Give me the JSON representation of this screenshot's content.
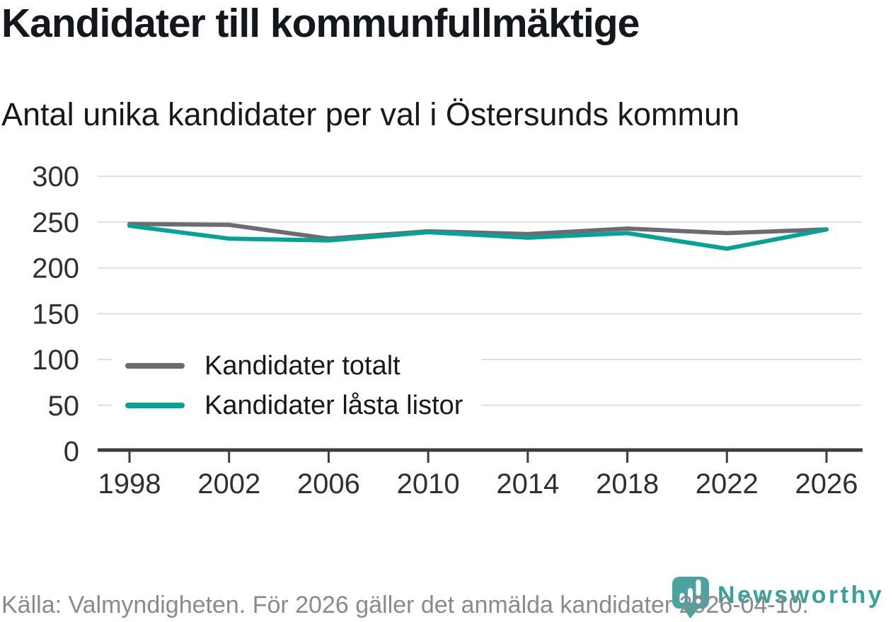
{
  "title": "Kandidater till kommunfullmäktige",
  "subtitle": "Antal unika kandidater per val i Östersunds kommun",
  "source": "Källa: Valmyndigheten. För 2026 gäller det anmälda kandidater 2026-04-10.",
  "brand": {
    "name": "Newsworthy",
    "icon": "bar-chart-pin-icon",
    "pin_color": "#4ba39f",
    "wordmark_color": "#3aa09c"
  },
  "colors": {
    "total_line": "#6e6a72",
    "locked_line": "#07a296",
    "grid": "#dedede",
    "axis": "#3d3d3d",
    "tick_text": "#2f2f2f",
    "text": "#17191c",
    "muted": "#8a8a8a"
  },
  "chart_data": {
    "type": "line",
    "title": "Kandidater till kommunfullmäktige",
    "subtitle": "Antal unika kandidater per val i Östersunds kommun",
    "x": [
      1998,
      2002,
      2006,
      2010,
      2014,
      2018,
      2022,
      2026
    ],
    "series": [
      {
        "name": "Kandidater totalt",
        "color": "#6e6a72",
        "values": [
          248,
          247,
          232,
          240,
          237,
          243,
          238,
          242
        ]
      },
      {
        "name": "Kandidater låsta listor",
        "color": "#07a296",
        "values": [
          246,
          232,
          230,
          239,
          233,
          238,
          221,
          242
        ]
      }
    ],
    "xlabel": "",
    "ylabel": "",
    "ylim": [
      0,
      300
    ],
    "yticks": [
      0,
      50,
      100,
      150,
      200,
      250,
      300
    ],
    "grid": "horizontal",
    "legend_position": "inside-middle-left"
  }
}
